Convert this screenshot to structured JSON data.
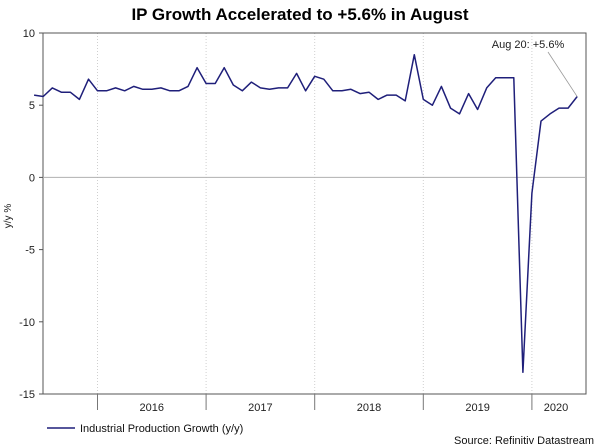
{
  "chart_data": {
    "type": "line",
    "title": "IP Growth Accelerated to +5.6% in August",
    "xlabel": "",
    "ylabel": "y/y %",
    "ylim": [
      -15,
      10
    ],
    "yticks": [
      10,
      5,
      0,
      -5,
      -10,
      -15
    ],
    "x_tick_labels": [
      "2016",
      "2017",
      "2018",
      "2019",
      "2020"
    ],
    "grid": "vertical dotted at year boundaries, solid zero line",
    "legend": {
      "entries": [
        "Industrial Production Growth (y/y)"
      ],
      "position": "bottom-left"
    },
    "annotation": {
      "text": "Aug 20: +5.6%"
    },
    "source": "Source: Refinitiv Datastream",
    "series": [
      {
        "name": "Industrial Production Growth (y/y)",
        "color": "#1f1f7a",
        "x_start": "2015-06",
        "frequency": "monthly",
        "values": [
          5.7,
          5.6,
          6.2,
          5.9,
          5.9,
          5.4,
          6.8,
          6.0,
          6.0,
          6.2,
          6.0,
          6.3,
          6.1,
          6.1,
          6.2,
          6.0,
          6.0,
          6.3,
          7.6,
          6.5,
          6.5,
          7.6,
          6.4,
          6.0,
          6.6,
          6.2,
          6.1,
          6.2,
          6.2,
          7.2,
          6.0,
          7.0,
          6.8,
          6.0,
          6.0,
          6.1,
          5.8,
          5.9,
          5.4,
          5.7,
          5.7,
          5.3,
          8.5,
          5.4,
          5.0,
          6.3,
          4.8,
          4.4,
          5.8,
          4.7,
          6.2,
          6.9,
          6.9,
          6.9,
          -13.5,
          -1.1,
          3.9,
          4.4,
          4.8,
          4.8,
          5.6
        ]
      }
    ]
  }
}
